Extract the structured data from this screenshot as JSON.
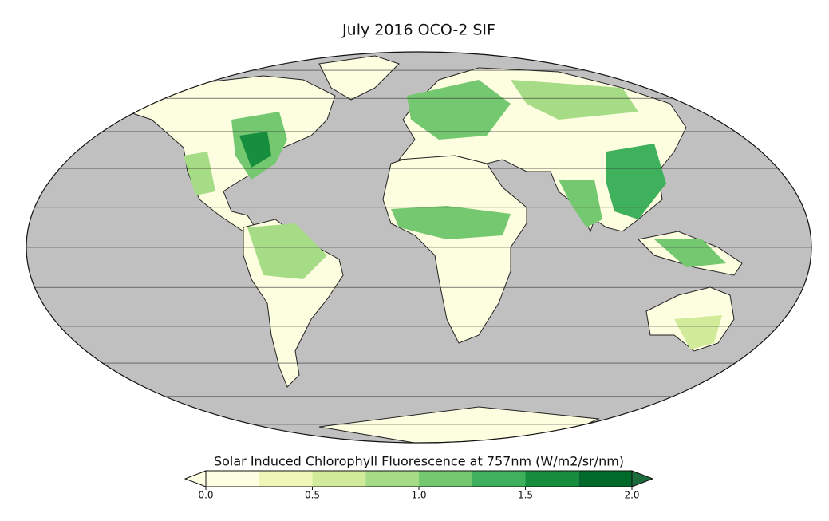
{
  "title": "July 2016 OCO-2 SIF",
  "colorbar": {
    "label": "Solar Induced Chlorophyll Fluorescence at 757nm (W/m2/sr/nm)",
    "levels": [
      0,
      0.25,
      0.5,
      0.75,
      1,
      1.25,
      1.5,
      1.75,
      2
    ],
    "colors": [
      "#fefee3",
      "#eef6b8",
      "#d2eb9a",
      "#a7dc86",
      "#74c86f",
      "#3fb05b",
      "#178d3e",
      "#006a2b"
    ],
    "under_color": "#fefee3",
    "over_color": "#1c6b3c",
    "ticks": [
      {
        "value": 0,
        "label": "0.0"
      },
      {
        "value": 0.5,
        "label": "0.5"
      },
      {
        "value": 1,
        "label": "1.0"
      },
      {
        "value": 1.5,
        "label": "1.5"
      },
      {
        "value": 2,
        "label": "2.0"
      }
    ]
  }
}
